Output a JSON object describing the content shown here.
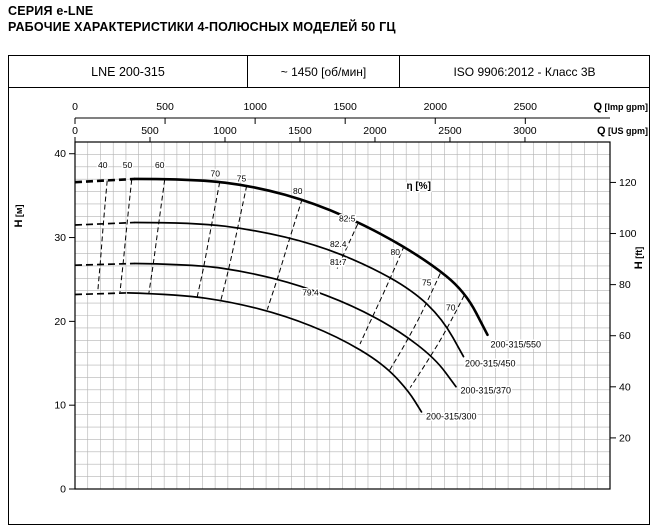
{
  "page": {
    "title_line1": "СЕРИЯ e-LNE",
    "title_line2": "РАБОЧИЕ ХАРАКТЕРИСТИКИ 4-ПОЛЮСНЫХ МОДЕЛЕЙ 50 ГЦ"
  },
  "header": {
    "model": "LNE 200-315",
    "speed": "~ 1450 [об/мин]",
    "standard": "ISO 9906:2012 - Класс 3В"
  },
  "chart_data": {
    "type": "line",
    "x_axis_imp": {
      "label": "Q [Imp gpm]",
      "ticks": [
        0,
        500,
        1000,
        1500,
        2000,
        2500
      ],
      "us_per_imp": 1.20095
    },
    "x_axis_us": {
      "label": "Q [US gpm]",
      "ticks": [
        0,
        500,
        1000,
        1500,
        2000,
        2500,
        3000
      ],
      "max": 3567
    },
    "y_axis_m": {
      "label": "H [м]",
      "ticks": [
        0,
        10,
        20,
        30,
        40
      ],
      "max": 41.4
    },
    "y_axis_ft": {
      "label": "H [ft]",
      "ticks": [
        20,
        40,
        60,
        80,
        100,
        120
      ],
      "m_per_ft": 0.3048
    },
    "eta_label": {
      "text": "η [%]",
      "at": [
        2210,
        35.8
      ]
    },
    "series": [
      {
        "name": "200-315/550",
        "weight": "bold",
        "label_at": [
          2770,
          16.9
        ],
        "points": [
          [
            0,
            36.6
          ],
          [
            400,
            37.0
          ],
          [
            800,
            37.0
          ],
          [
            1200,
            36.1
          ],
          [
            1600,
            34.1
          ],
          [
            2000,
            30.9
          ],
          [
            2350,
            27.2
          ],
          [
            2600,
            23.6
          ],
          [
            2750,
            18.4
          ]
        ]
      },
      {
        "name": "200-315/450",
        "weight": "normal",
        "label_at": [
          2600,
          14.6
        ],
        "points": [
          [
            0,
            31.5
          ],
          [
            400,
            31.8
          ],
          [
            800,
            31.8
          ],
          [
            1200,
            30.9
          ],
          [
            1600,
            29.2
          ],
          [
            1950,
            26.7
          ],
          [
            2250,
            23.7
          ],
          [
            2450,
            20.3
          ],
          [
            2590,
            15.8
          ]
        ]
      },
      {
        "name": "200-315/370",
        "weight": "normal",
        "label_at": [
          2570,
          11.4
        ],
        "points": [
          [
            0,
            26.7
          ],
          [
            400,
            26.9
          ],
          [
            800,
            26.8
          ],
          [
            1150,
            25.9
          ],
          [
            1500,
            24.3
          ],
          [
            1850,
            21.9
          ],
          [
            2150,
            19.0
          ],
          [
            2400,
            15.6
          ],
          [
            2540,
            12.2
          ]
        ]
      },
      {
        "name": "200-315/300",
        "weight": "normal",
        "label_at": [
          2340,
          8.3
        ],
        "points": [
          [
            0,
            23.2
          ],
          [
            350,
            23.4
          ],
          [
            700,
            23.2
          ],
          [
            1050,
            22.3
          ],
          [
            1400,
            20.7
          ],
          [
            1750,
            18.2
          ],
          [
            2050,
            15.0
          ],
          [
            2220,
            11.8
          ],
          [
            2310,
            9.2
          ]
        ]
      }
    ],
    "bep_labels": [
      {
        "text": "82.4",
        "at": [
          1755,
          28.9
        ]
      },
      {
        "text": "81.7",
        "at": [
          1755,
          26.7
        ]
      },
      {
        "text": "79.4",
        "at": [
          1570,
          23.1
        ]
      }
    ],
    "efficiency_contours": [
      {
        "label": "40",
        "label_at": [
          185,
          38.3
        ],
        "points": [
          [
            215,
            36.8
          ],
          [
            190,
            32.0
          ],
          [
            170,
            27.2
          ],
          [
            152,
            23.6
          ]
        ]
      },
      {
        "label": "50",
        "label_at": [
          350,
          38.3
        ],
        "points": [
          [
            378,
            36.9
          ],
          [
            348,
            31.9
          ],
          [
            322,
            27.0
          ],
          [
            300,
            23.5
          ]
        ]
      },
      {
        "label": "60",
        "label_at": [
          565,
          38.3
        ],
        "points": [
          [
            598,
            36.9
          ],
          [
            558,
            31.7
          ],
          [
            522,
            26.8
          ],
          [
            492,
            23.3
          ]
        ]
      },
      {
        "label": "70",
        "label_at": [
          935,
          37.3
        ],
        "points": [
          [
            965,
            36.6
          ],
          [
            908,
            31.3
          ],
          [
            858,
            26.4
          ],
          [
            812,
            22.7
          ]
        ]
      },
      {
        "label": "75",
        "label_at": [
          1110,
          36.7
        ],
        "points": [
          [
            1145,
            36.2
          ],
          [
            1082,
            30.9
          ],
          [
            1022,
            26.0
          ],
          [
            968,
            22.2
          ]
        ]
      },
      {
        "label": "80",
        "label_at": [
          1485,
          35.2
        ],
        "points": [
          [
            1515,
            34.6
          ],
          [
            1432,
            30.0
          ],
          [
            1352,
            25.2
          ],
          [
            1282,
            21.4
          ]
        ]
      },
      {
        "label": "82.5",
        "label_at": [
          1815,
          31.9
        ],
        "points": [
          [
            1885,
            31.6
          ],
          [
            1815,
            28.9
          ],
          [
            1748,
            26.3
          ]
        ]
      },
      {
        "label": "80",
        "label_at": [
          2135,
          27.9
        ],
        "points": [
          [
            2195,
            29.0
          ],
          [
            2095,
            24.8
          ],
          [
            1990,
            20.8
          ],
          [
            1900,
            17.3
          ]
        ]
      },
      {
        "label": "75",
        "label_at": [
          2345,
          24.3
        ],
        "points": [
          [
            2435,
            25.7
          ],
          [
            2325,
            21.4
          ],
          [
            2205,
            17.4
          ],
          [
            2095,
            14.1
          ]
        ]
      },
      {
        "label": "70",
        "label_at": [
          2505,
          21.3
        ],
        "points": [
          [
            2595,
            23.1
          ],
          [
            2475,
            18.9
          ],
          [
            2345,
            15.1
          ],
          [
            2235,
            12.1
          ]
        ]
      }
    ]
  }
}
